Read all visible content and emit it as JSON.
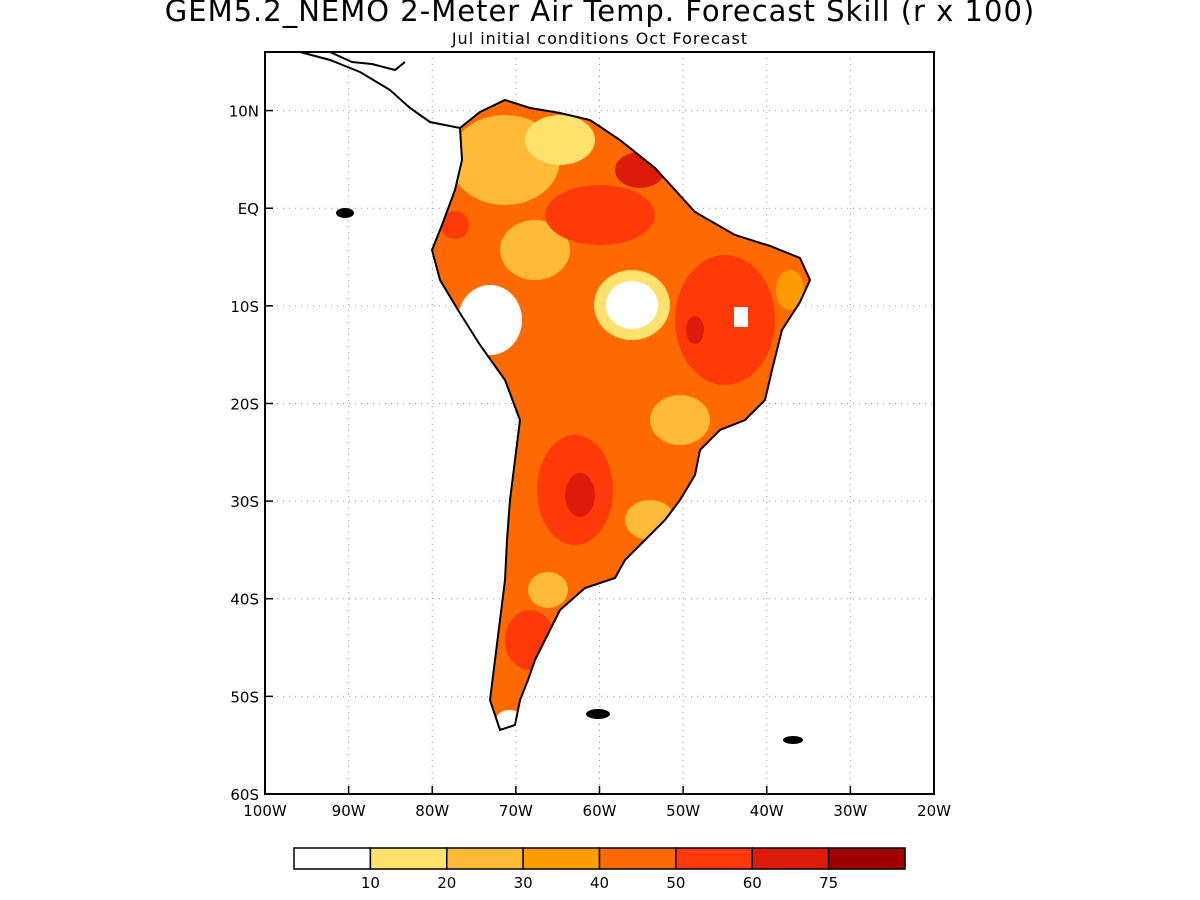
{
  "title": "GEM5.2_NEMO 2-Meter Air Temp. Forecast Skill (r x 100)",
  "subtitle": "Jul initial conditions  Oct Forecast",
  "map": {
    "lon_ticks": [
      "100W",
      "90W",
      "80W",
      "70W",
      "60W",
      "50W",
      "40W",
      "30W",
      "20W"
    ],
    "lat_ticks": [
      "10N",
      "EQ",
      "10S",
      "20S",
      "30S",
      "40S",
      "50S",
      "60S"
    ],
    "lon_range": [
      -100,
      -20
    ],
    "lat_range": [
      -60,
      16
    ],
    "gridlines": true
  },
  "legend": {
    "labels": [
      "10",
      "20",
      "30",
      "40",
      "50",
      "60",
      "75"
    ],
    "colors": [
      "#ffffff",
      "#ffe16e",
      "#ffbb37",
      "#ff9c00",
      "#ff6a00",
      "#ff3a08",
      "#dd1b0b",
      "#a00000"
    ]
  }
}
